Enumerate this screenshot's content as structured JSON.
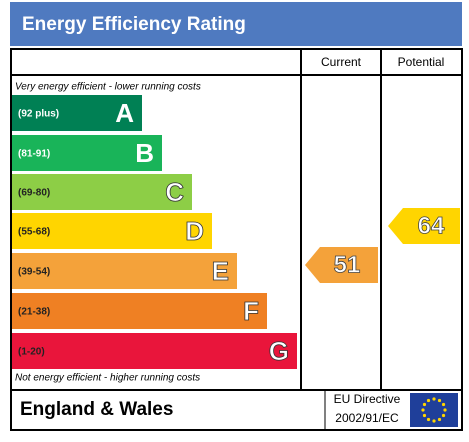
{
  "header": {
    "title": "Energy Efficiency Rating"
  },
  "columns": {
    "current": "Current",
    "potential": "Potential"
  },
  "top_note": "Very energy efficient - lower running costs",
  "bottom_note": "Not energy efficient - higher running costs",
  "bands": [
    {
      "range": "(92 plus)",
      "letter": "A"
    },
    {
      "range": "(81-91)",
      "letter": "B"
    },
    {
      "range": "(69-80)",
      "letter": "C"
    },
    {
      "range": "(55-68)",
      "letter": "D"
    },
    {
      "range": "(39-54)",
      "letter": "E"
    },
    {
      "range": "(21-38)",
      "letter": "F"
    },
    {
      "range": "(1-20)",
      "letter": "G"
    }
  ],
  "ratings": {
    "current": "51",
    "potential": "64"
  },
  "footer": {
    "region": "England & Wales",
    "directive_line1": "EU Directive",
    "directive_line2": "2002/91/EC"
  }
}
